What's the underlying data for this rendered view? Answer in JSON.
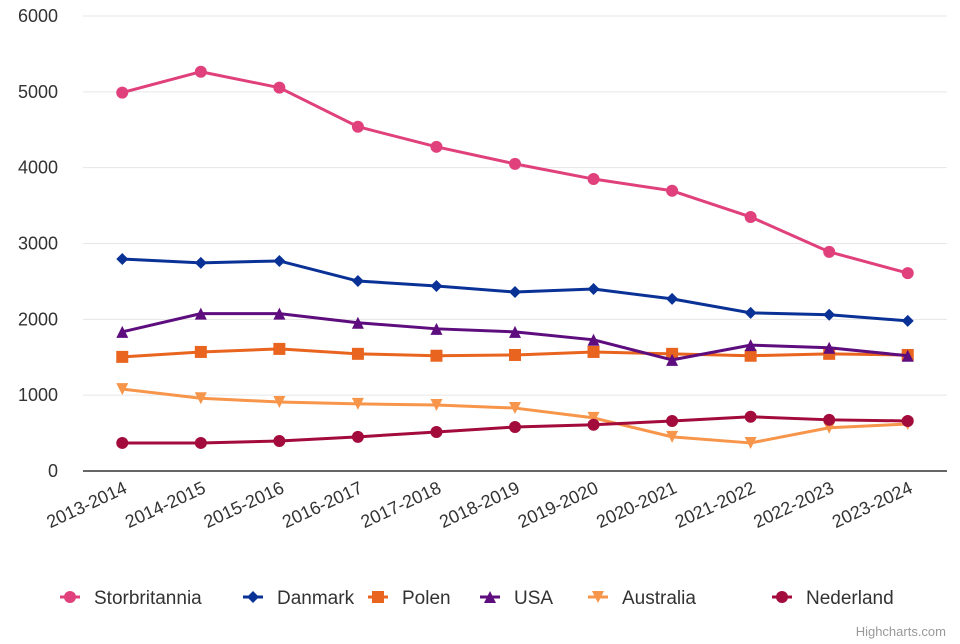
{
  "chart_data": {
    "type": "line",
    "title": "",
    "xlabel": "",
    "ylabel": "",
    "ylim": [
      0,
      6000
    ],
    "yticks": [
      0,
      1000,
      2000,
      3000,
      4000,
      5000,
      6000
    ],
    "grid": true,
    "legend_position": "bottom",
    "categories": [
      "2013-2014",
      "2014-2015",
      "2015-2016",
      "2016-2017",
      "2017-2018",
      "2018-2019",
      "2019-2020",
      "2020-2021",
      "2021-2022",
      "2022-2023",
      "2023-2024"
    ],
    "series": [
      {
        "name": "Storbritannia",
        "color": "#e0407b",
        "marker": "circle",
        "values": [
          4990,
          5265,
          5055,
          4540,
          4275,
          4050,
          3850,
          3695,
          3350,
          2890,
          2610
        ]
      },
      {
        "name": "Danmark",
        "color": "#0a3296",
        "marker": "diamond",
        "values": [
          2795,
          2745,
          2770,
          2505,
          2440,
          2360,
          2400,
          2270,
          2085,
          2060,
          1980
        ]
      },
      {
        "name": "Polen",
        "color": "#e8641f",
        "marker": "square",
        "values": [
          1505,
          1570,
          1610,
          1545,
          1520,
          1530,
          1570,
          1545,
          1520,
          1545,
          1530
        ]
      },
      {
        "name": "USA",
        "color": "#5e0d7e",
        "marker": "triangle",
        "values": [
          1835,
          2075,
          2075,
          1955,
          1875,
          1835,
          1730,
          1465,
          1660,
          1625,
          1520
        ]
      },
      {
        "name": "Australia",
        "color": "#f7954a",
        "marker": "triangle-down",
        "values": [
          1080,
          960,
          910,
          885,
          870,
          830,
          700,
          450,
          370,
          570,
          620
        ]
      },
      {
        "name": "Nederland",
        "color": "#a20b3c",
        "marker": "circle",
        "values": [
          370,
          370,
          395,
          450,
          515,
          580,
          610,
          660,
          715,
          675,
          660
        ]
      }
    ]
  },
  "credit": "Highcharts.com"
}
